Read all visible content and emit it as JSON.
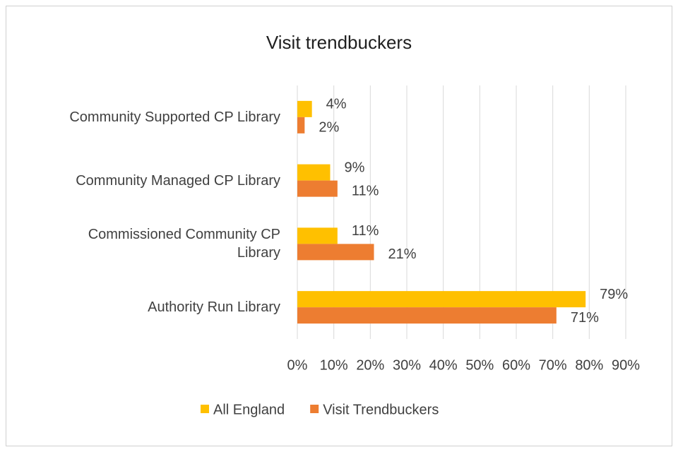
{
  "chart_data": {
    "type": "bar",
    "orientation": "horizontal",
    "title": "Visit trendbuckers",
    "categories": [
      "Community Supported CP Library",
      "Community Managed CP Library",
      "Commissioned Community CP Library",
      "Authority Run Library"
    ],
    "series": [
      {
        "name": "All England",
        "color": "#ffc000",
        "values": [
          4,
          9,
          11,
          79
        ],
        "value_labels": [
          "4%",
          "9%",
          "11%",
          "79%"
        ]
      },
      {
        "name": "Visit Trendbuckers",
        "color": "#ed7d31",
        "values": [
          2,
          11,
          21,
          71
        ],
        "value_labels": [
          "2%",
          "11%",
          "21%",
          "71%"
        ]
      }
    ],
    "xlim": [
      0,
      90
    ],
    "xticks": [
      {
        "value": 0,
        "label": "0%"
      },
      {
        "value": 10,
        "label": "10%"
      },
      {
        "value": 20,
        "label": "20%"
      },
      {
        "value": 30,
        "label": "30%"
      },
      {
        "value": 40,
        "label": "40%"
      },
      {
        "value": 50,
        "label": "50%"
      },
      {
        "value": 60,
        "label": "60%"
      },
      {
        "value": 70,
        "label": "70%"
      },
      {
        "value": 80,
        "label": "80%"
      },
      {
        "value": 90,
        "label": "90%"
      }
    ],
    "grid": true,
    "legend": "bottom"
  }
}
